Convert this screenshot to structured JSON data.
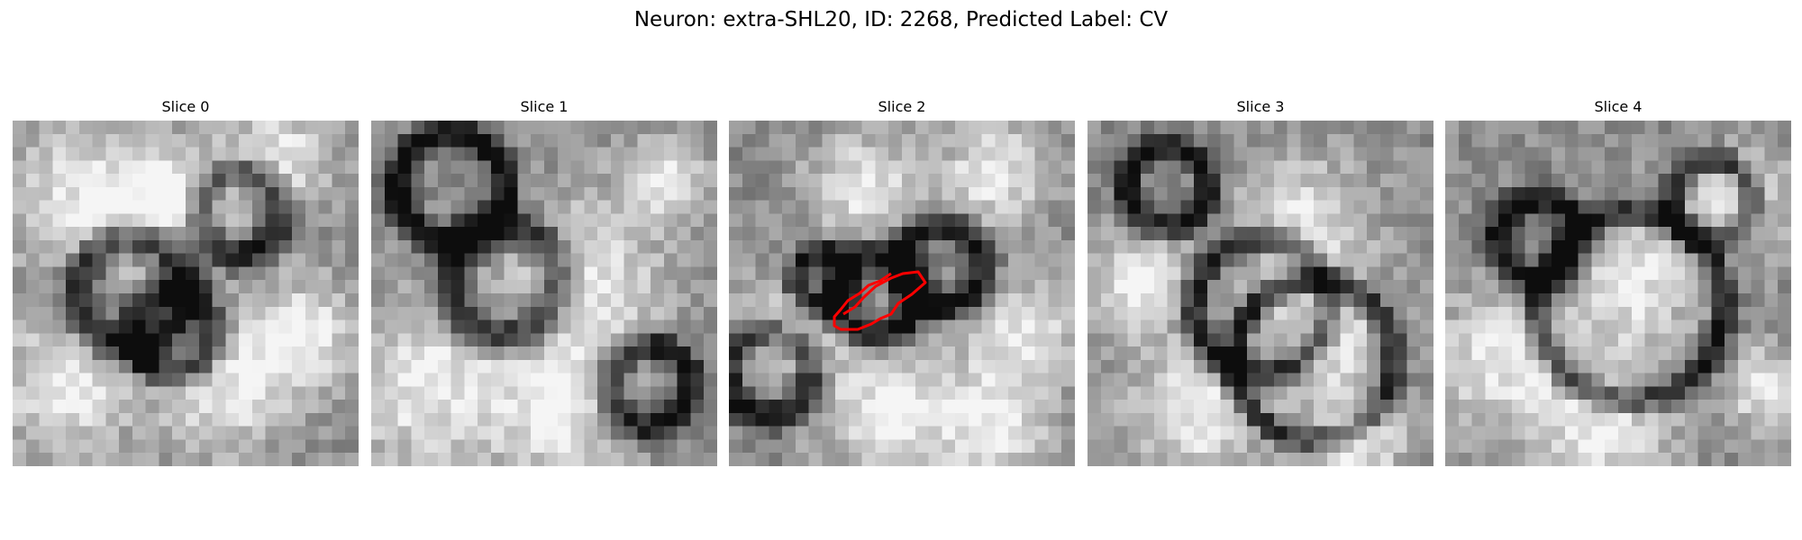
{
  "figure": {
    "title": "Neuron: extra-SHL20, ID: 2268, Predicted Label: CV"
  },
  "panels": [
    {
      "title": "Slice 0"
    },
    {
      "title": "Slice 1"
    },
    {
      "title": "Slice 2"
    },
    {
      "title": "Slice 3"
    },
    {
      "title": "Slice 4"
    }
  ],
  "overlay": {
    "slice_index": 2,
    "color": "#ff0000"
  },
  "image": {
    "grid": 26,
    "colormap": "grayscale"
  }
}
